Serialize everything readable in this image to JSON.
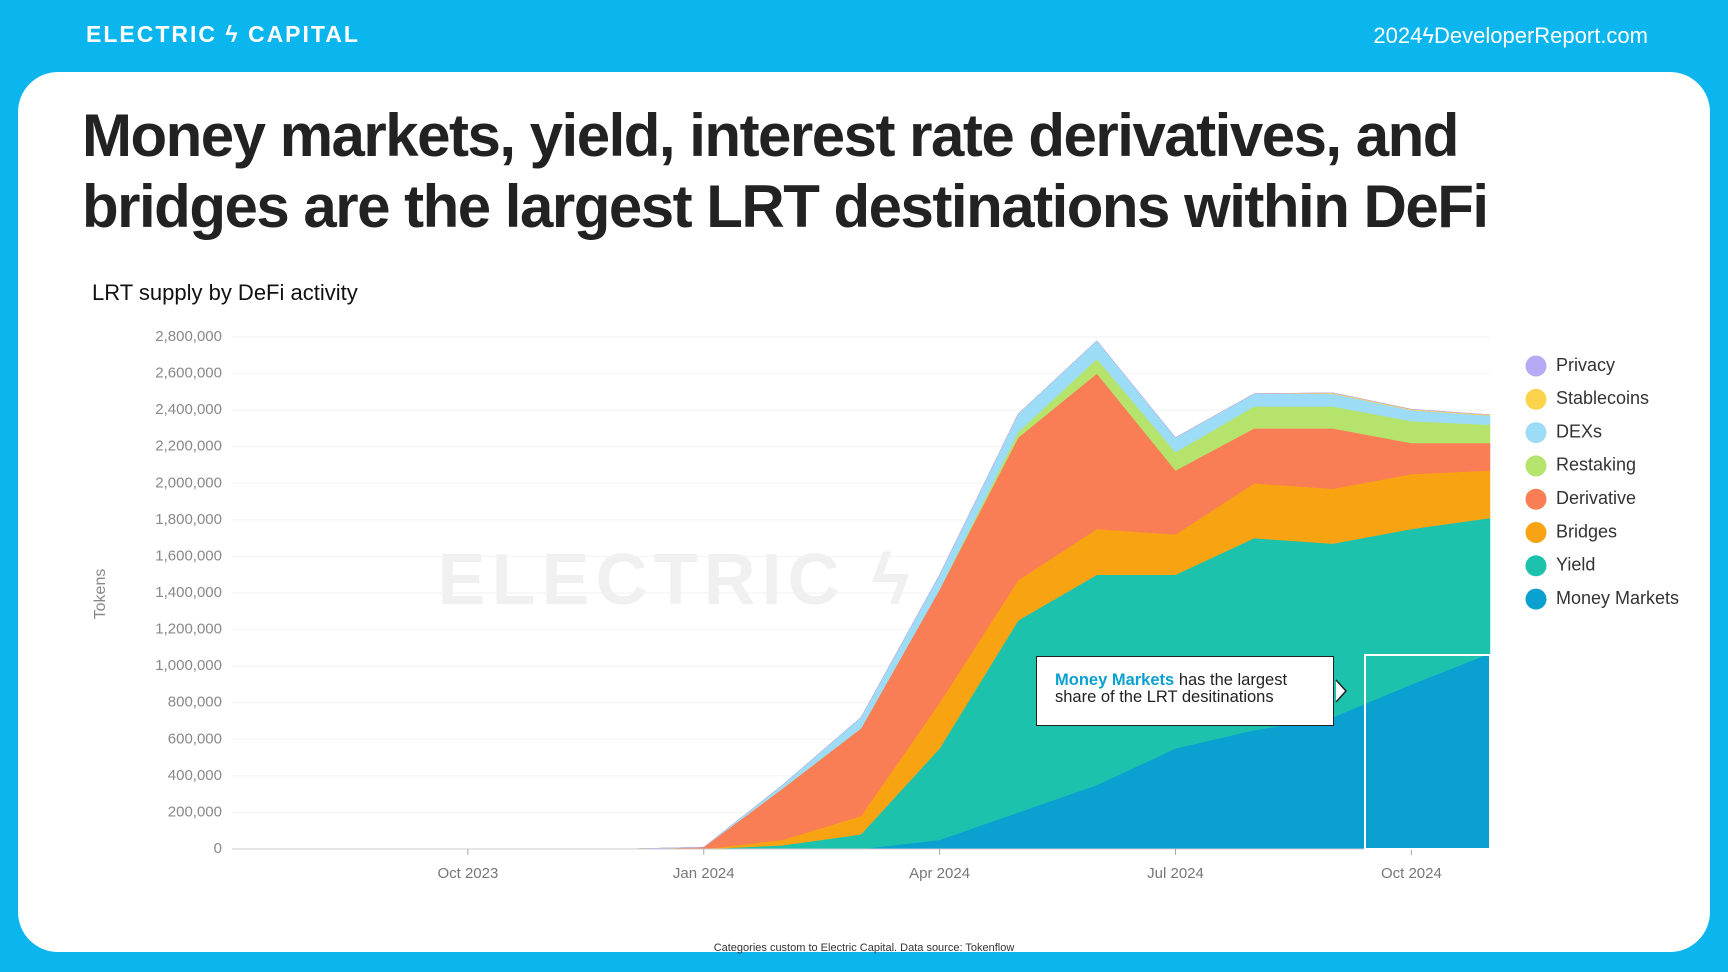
{
  "header": {
    "brand": "ELECTRIC ϟ CAPITAL",
    "site": "2024ϟDeveloperReport.com"
  },
  "chart_data": {
    "type": "stacked_area",
    "title": [
      "Money markets, yield, interest rate derivatives, and",
      "bridges are the largest LRT destinations within DeFi"
    ],
    "subtitle": "LRT supply by DeFi activity",
    "y_label": "Tokens",
    "source": "Categories custom to Electric Capital. Data source: Tokenflow",
    "annotation": {
      "highlight": "Money Markets",
      "lines": [
        "has the largest",
        "share of the LRT desitinations"
      ]
    },
    "x": [
      "Jul 2023",
      "Aug 2023",
      "Sep 2023",
      "Oct 2023",
      "Nov 2023",
      "Dec 2023",
      "Jan 2024",
      "Feb 2024",
      "Mar 2024",
      "Apr 2024",
      "May 2024",
      "Jun 2024",
      "Jul 2024",
      "Aug 2024",
      "Sep 2024",
      "Oct 2024",
      "Nov 2024"
    ],
    "xticks": [
      "Oct 2023",
      "Jan 2024",
      "Apr 2024",
      "Jul 2024",
      "Oct 2024"
    ],
    "ylim": [
      0,
      2800000
    ],
    "yticks": [
      {
        "value": 0,
        "label": "0"
      },
      {
        "value": 200000,
        "label": "200,000"
      },
      {
        "value": 400000,
        "label": "400,000"
      },
      {
        "value": 600000,
        "label": "600,000"
      },
      {
        "value": 800000,
        "label": "800,000"
      },
      {
        "value": 1000000,
        "label": "1,000,000"
      },
      {
        "value": 1200000,
        "label": "1,200,000"
      },
      {
        "value": 1400000,
        "label": "1,400,000"
      },
      {
        "value": 1600000,
        "label": "1,600,000"
      },
      {
        "value": 1800000,
        "label": "1,800,000"
      },
      {
        "value": 2000000,
        "label": "2,000,000"
      },
      {
        "value": 2200000,
        "label": "2,200,000"
      },
      {
        "value": 2400000,
        "label": "2,400,000"
      },
      {
        "value": 2600000,
        "label": "2,600,000"
      },
      {
        "value": 2800000,
        "label": "2,800,000"
      }
    ],
    "grid": true,
    "legend": "right",
    "series": [
      {
        "name": "Money Markets",
        "color": "#0aa0cf",
        "values": [
          0,
          0,
          0,
          0,
          0,
          0,
          0,
          0,
          0,
          50000,
          200000,
          350000,
          550000,
          650000,
          720000,
          900000,
          1070000
        ]
      },
      {
        "name": "Yield",
        "color": "#1dc2ad",
        "values": [
          0,
          0,
          0,
          0,
          0,
          0,
          0,
          20000,
          80000,
          500000,
          1050000,
          1150000,
          950000,
          1050000,
          950000,
          850000,
          740000
        ]
      },
      {
        "name": "Bridges",
        "color": "#f8a412",
        "values": [
          0,
          0,
          0,
          0,
          0,
          0,
          0,
          30000,
          100000,
          250000,
          220000,
          250000,
          220000,
          300000,
          300000,
          300000,
          260000
        ]
      },
      {
        "name": "Derivative",
        "color": "#f97d55",
        "values": [
          0,
          0,
          0,
          0,
          0,
          0,
          10000,
          280000,
          480000,
          620000,
          780000,
          850000,
          350000,
          300000,
          330000,
          170000,
          150000
        ]
      },
      {
        "name": "Restaking",
        "color": "#b6e36b",
        "values": [
          0,
          0,
          0,
          0,
          0,
          0,
          0,
          0,
          0,
          0,
          30000,
          80000,
          100000,
          120000,
          120000,
          120000,
          100000
        ]
      },
      {
        "name": "DEXs",
        "color": "#9cdcf7",
        "values": [
          0,
          0,
          0,
          0,
          0,
          0,
          0,
          20000,
          60000,
          80000,
          100000,
          100000,
          80000,
          70000,
          70000,
          60000,
          50000
        ]
      },
      {
        "name": "Stablecoins",
        "color": "#fcd34d",
        "values": [
          0,
          0,
          0,
          0,
          0,
          0,
          0,
          0,
          0,
          0,
          0,
          0,
          0,
          0,
          5000,
          5000,
          5000
        ]
      },
      {
        "name": "Privacy",
        "color": "#b8a9f5",
        "values": [
          0,
          0,
          0,
          0,
          0,
          0,
          0,
          0,
          0,
          0,
          0,
          0,
          0,
          0,
          0,
          0,
          0
        ]
      }
    ]
  }
}
